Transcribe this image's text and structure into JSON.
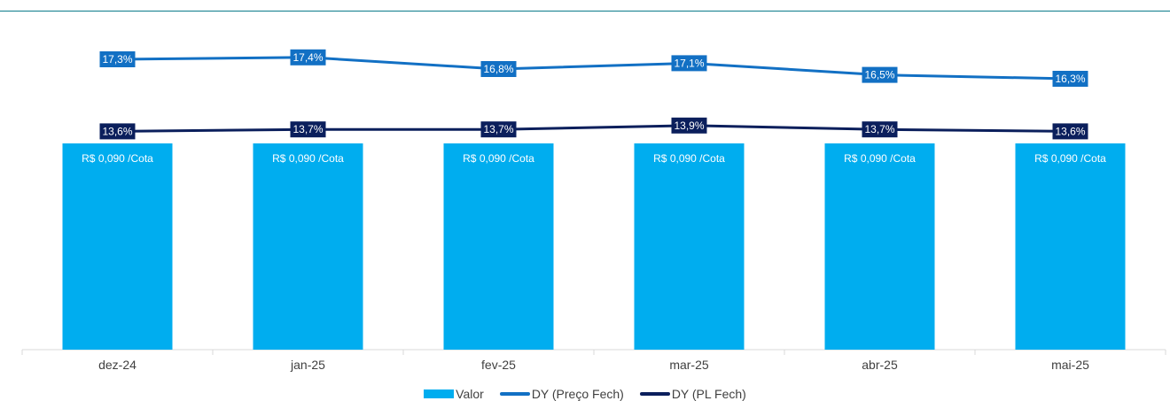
{
  "chart_data": {
    "type": "bar",
    "categories": [
      "dez-24",
      "jan-25",
      "fev-25",
      "mar-25",
      "abr-25",
      "mai-25"
    ],
    "bar_series": {
      "name": "Valor",
      "values": [
        0.09,
        0.09,
        0.09,
        0.09,
        0.09,
        0.09
      ],
      "labels": [
        "R$ 0,090 /Cota",
        "R$ 0,090 /Cota",
        "R$ 0,090 /Cota",
        "R$ 0,090 /Cota",
        "R$ 0,090 /Cota",
        "R$ 0,090 /Cota"
      ],
      "color": "#00adef"
    },
    "line_series": [
      {
        "name": "DY (Preço Fech)",
        "values": [
          17.3,
          17.4,
          16.8,
          17.1,
          16.5,
          16.3
        ],
        "labels": [
          "17,3%",
          "17,4%",
          "16,8%",
          "17,1%",
          "16,5%",
          "16,3%"
        ],
        "color": "#1270c4"
      },
      {
        "name": "DY (PL Fech)",
        "values": [
          13.6,
          13.7,
          13.7,
          13.9,
          13.7,
          13.6
        ],
        "labels": [
          "13,6%",
          "13,7%",
          "13,7%",
          "13,9%",
          "13,7%",
          "13,6%"
        ],
        "color": "#0b1f5c"
      }
    ],
    "title": "",
    "xlabel": "",
    "ylabel": "",
    "grid": false,
    "legend_position": "bottom-center"
  }
}
